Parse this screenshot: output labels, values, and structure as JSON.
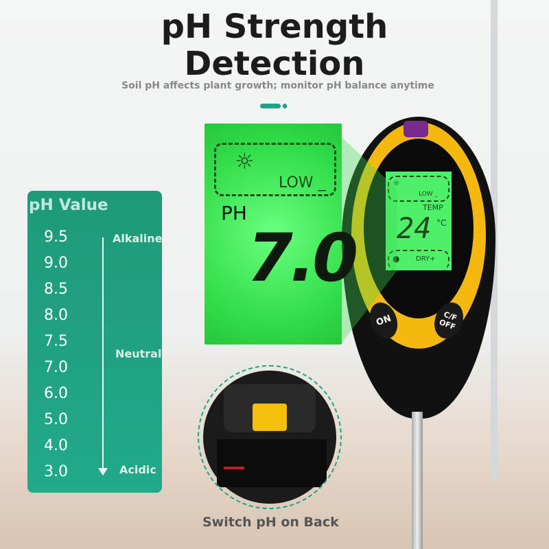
{
  "header": {
    "title_line1": "pH Strength",
    "title_line2": "Detection",
    "subtitle": "Soil pH affects plant growth; monitor pH balance anytime"
  },
  "ph_panel": {
    "title": "pH Value",
    "values": [
      "9.5",
      "9.0",
      "8.5",
      "8.0",
      "7.5",
      "7.0",
      "6.0",
      "5.0",
      "4.0",
      "3.0"
    ],
    "labels": {
      "alkaline": "Alkaline",
      "neutral": "Neutral",
      "acidic": "Acidic"
    }
  },
  "lcd_zoom": {
    "low": "LOW _",
    "ph_label": "PH",
    "reading": "7.0",
    "icon": "sun-icon"
  },
  "meter": {
    "low": "LOW _",
    "temp": "TEMP",
    "temp_value": "24",
    "unit": "°C",
    "dry": "DRY+",
    "on_button": "ON",
    "cf_button": "C/F OFF"
  },
  "caption": "Switch pH on Back",
  "colors": {
    "accent": "#1aa384",
    "lcd": "#3fe85a",
    "meter": "#f5b80e"
  }
}
